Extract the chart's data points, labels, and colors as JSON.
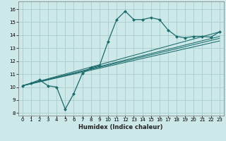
{
  "xlabel": "Humidex (Indice chaleur)",
  "bg_color": "#cce8e8",
  "grid_color": "#aacccc",
  "line_color": "#1a6b6b",
  "xlim": [
    -0.5,
    23.5
  ],
  "ylim": [
    7.8,
    16.6
  ],
  "xticks": [
    0,
    1,
    2,
    3,
    4,
    5,
    6,
    7,
    8,
    9,
    10,
    11,
    12,
    13,
    14,
    15,
    16,
    17,
    18,
    19,
    20,
    21,
    22,
    23
  ],
  "yticks": [
    8,
    9,
    10,
    11,
    12,
    13,
    14,
    15,
    16
  ],
  "main_x": [
    0,
    1,
    2,
    3,
    4,
    5,
    6,
    7,
    8,
    9,
    10,
    11,
    12,
    13,
    14,
    15,
    16,
    17,
    18,
    19,
    20,
    21,
    22,
    23
  ],
  "main_y": [
    10.1,
    10.3,
    10.55,
    10.1,
    10.0,
    8.3,
    9.5,
    11.05,
    11.5,
    11.65,
    13.5,
    15.2,
    15.85,
    15.2,
    15.2,
    15.35,
    15.2,
    14.4,
    13.9,
    13.8,
    13.9,
    13.9,
    13.85,
    14.25
  ],
  "reg_lines": [
    {
      "x0": 0.0,
      "y0": 10.1,
      "x1": 23.0,
      "y1": 14.25
    },
    {
      "x0": 0.0,
      "y0": 10.1,
      "x1": 23.0,
      "y1": 13.9
    },
    {
      "x0": 0.0,
      "y0": 10.1,
      "x1": 23.0,
      "y1": 13.75
    },
    {
      "x0": 0.0,
      "y0": 10.1,
      "x1": 23.0,
      "y1": 13.55
    }
  ]
}
